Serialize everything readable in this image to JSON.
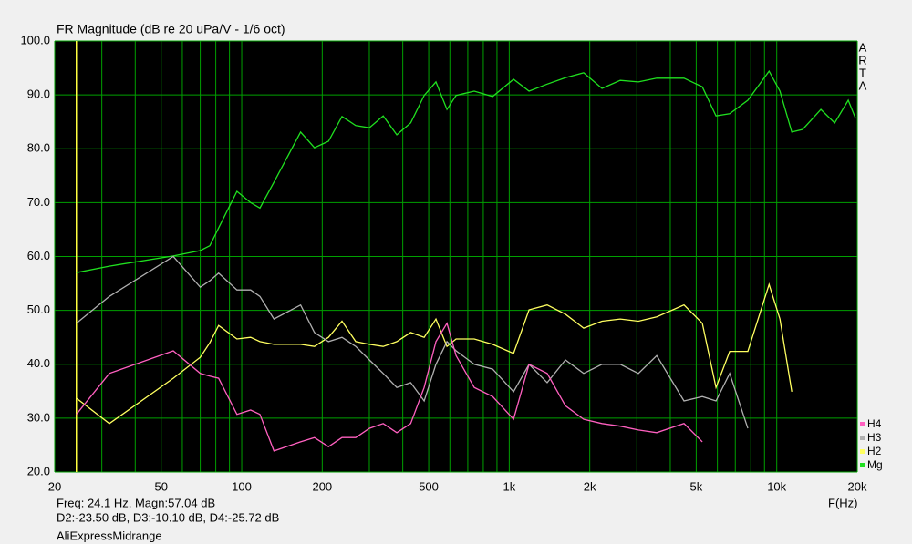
{
  "chart_data": {
    "type": "line",
    "title": "FR Magnitude (dB re 20 uPa/V - 1/6 oct)",
    "x_label": "F(Hz)",
    "side_label": [
      "A",
      "R",
      "T",
      "A"
    ],
    "xscale": "log",
    "xlim": [
      20,
      20000
    ],
    "ylim": [
      20,
      100
    ],
    "xticks": [
      20,
      50,
      100,
      200,
      500,
      {
        "value": 1000,
        "label": "1k"
      },
      {
        "value": 2000,
        "label": "2k"
      },
      {
        "value": 5000,
        "label": "5k"
      },
      {
        "value": 10000,
        "label": "10k"
      },
      {
        "value": 20000,
        "label": "20k"
      }
    ],
    "x_minor_gridlines": [
      30,
      40,
      60,
      70,
      80,
      90,
      300,
      400,
      600,
      700,
      800,
      900,
      3000,
      4000,
      6000,
      7000,
      8000,
      9000
    ],
    "yticks": [
      {
        "value": 20,
        "label": "20.0"
      },
      {
        "value": 30,
        "label": "30.0"
      },
      {
        "value": 40,
        "label": "40.0"
      },
      {
        "value": 50,
        "label": "50.0"
      },
      {
        "value": 60,
        "label": "60.0"
      },
      {
        "value": 70,
        "label": "70.0"
      },
      {
        "value": 80,
        "label": "80.0"
      },
      {
        "value": 90,
        "label": "90.0"
      },
      {
        "value": 100,
        "label": "100.0"
      }
    ],
    "grid": true,
    "grid_color": "#00a000",
    "cursor_x": 24.1,
    "cursor_color": "#ffff40",
    "readout": [
      "Freq: 24.1 Hz, Magn:57.04 dB",
      "D2:-23.50 dB, D3:-10.10 dB, D4:-25.72 dB",
      "AliExpressMidrange"
    ],
    "x": [
      24.1,
      32,
      55.5,
      70,
      76,
      82,
      96,
      108,
      117,
      132,
      166,
      187,
      211,
      237,
      267,
      300,
      338,
      380,
      428,
      481,
      532,
      585,
      633,
      740,
      867,
      1038,
      1186,
      1387,
      1622,
      1898,
      2222,
      2600,
      3040,
      3560,
      4500,
      5270,
      5930,
      6670,
      7800,
      9360,
      10280,
      11380,
      12500,
      14620,
      16460,
      18500,
      19720
    ],
    "series": [
      {
        "name": "Mg",
        "color": "#20e020",
        "values": [
          57.0,
          58.2,
          60.1,
          61.1,
          62,
          65.3,
          72.1,
          70,
          69,
          73.8,
          83.1,
          80.2,
          81.4,
          86,
          84.3,
          83.9,
          86.1,
          82.6,
          84.8,
          89.9,
          92.4,
          87.3,
          89.9,
          90.7,
          89.7,
          92.9,
          90.7,
          92,
          93.2,
          94.1,
          91.2,
          92.7,
          92.4,
          93.1,
          93.1,
          91.5,
          86.1,
          86.5,
          89,
          94.4,
          90.7,
          83.1,
          83.6,
          87.3,
          84.8,
          89,
          85.6
        ]
      },
      {
        "name": "H2",
        "color": "#ffff60",
        "values": [
          33.7,
          29,
          37.4,
          41.3,
          44,
          47.2,
          44.7,
          45,
          44.2,
          43.7,
          43.7,
          43.3,
          45,
          48,
          44.2,
          43.7,
          43.3,
          44.2,
          45.9,
          45,
          48.4,
          43.3,
          44.7,
          44.7,
          43.7,
          42,
          50.1,
          51,
          49.3,
          46.7,
          48,
          48.4,
          48,
          48.8,
          51,
          47.6,
          35.7,
          42.4,
          42.4,
          54.8,
          48.4,
          34.9,
          null,
          null,
          null,
          null,
          null
        ]
      },
      {
        "name": "H3",
        "color": "#b0b0b0",
        "values": [
          47.6,
          52.6,
          60,
          54.3,
          55.5,
          56.9,
          53.8,
          53.8,
          52.6,
          48.4,
          51,
          45.9,
          44.2,
          45,
          43.3,
          40.8,
          38.3,
          35.7,
          36.6,
          33.2,
          40,
          44.2,
          42.5,
          40,
          39.1,
          34.9,
          40,
          36.6,
          40.8,
          38.3,
          40,
          40,
          38.3,
          41.6,
          33.2,
          34,
          33.2,
          38.3,
          28.1,
          null,
          null,
          null,
          null,
          null,
          null,
          null,
          null
        ]
      },
      {
        "name": "H4",
        "color": "#ff60c0",
        "values": [
          30.7,
          38.3,
          42.5,
          38.3,
          37.8,
          37.4,
          30.7,
          31.5,
          30.7,
          23.9,
          25.6,
          26.4,
          24.7,
          26.4,
          26.4,
          28.1,
          29,
          27.3,
          29,
          35.7,
          44.2,
          47.6,
          41.6,
          35.7,
          34,
          29.8,
          40,
          38.3,
          32.3,
          29.8,
          29,
          28.5,
          27.8,
          27.3,
          29,
          25.6,
          null,
          null,
          null,
          null,
          null,
          null,
          null,
          null,
          null,
          null,
          null
        ]
      }
    ]
  }
}
